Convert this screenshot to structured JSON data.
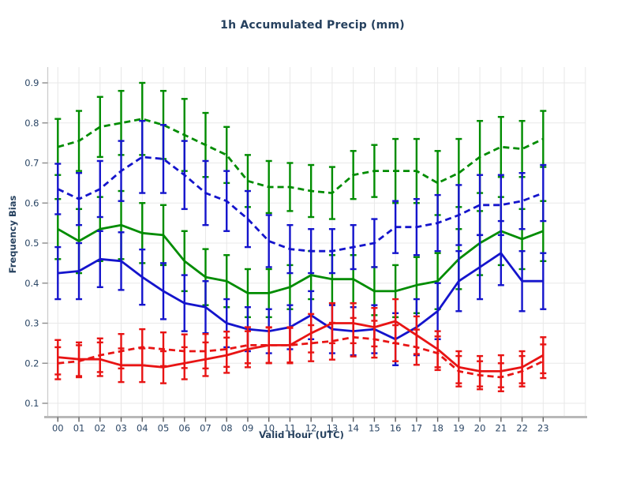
{
  "title": "1h Accumulated Precip (mm)",
  "axes": {
    "ylabel": "Frequency Bias",
    "xlabel": "Valid Hour (UTC)",
    "y_ticks": [
      0.1,
      0.2,
      0.3,
      0.4,
      0.5,
      0.6,
      0.7,
      0.8,
      0.9
    ],
    "x_tick_labels": [
      "00",
      "01",
      "02",
      "03",
      "04",
      "05",
      "06",
      "07",
      "08",
      "09",
      "10",
      "11",
      "12",
      "13",
      "14",
      "15",
      "16",
      "17",
      "18",
      "19",
      "20",
      "21",
      "22",
      "23"
    ]
  },
  "colors": {
    "green": "#008c00",
    "blue": "#1414cc",
    "red": "#e81414",
    "text_navy": "#2c4766",
    "grid": "#e8e8e8",
    "spine_left": "#cccccc",
    "spine_bottom": "#b8b8b8",
    "tick_y": "#8c8c8c",
    "tick_x": "#606060"
  },
  "chart_data": {
    "type": "line",
    "title": "1h Accumulated Precip (mm)",
    "xlabel": "Valid Hour (UTC)",
    "ylabel": "Frequency Bias",
    "x": [
      "00",
      "01",
      "02",
      "03",
      "04",
      "05",
      "06",
      "07",
      "08",
      "09",
      "10",
      "11",
      "12",
      "13",
      "14",
      "15",
      "16",
      "17",
      "18",
      "19",
      "20",
      "21",
      "22",
      "23"
    ],
    "ylim": [
      0.065,
      0.92
    ],
    "grid": true,
    "legend_position": "none",
    "error_bars": true,
    "series": [
      {
        "name": "green-dashed",
        "color": "#008c00",
        "style": "dashed",
        "values": [
          0.74,
          0.755,
          0.79,
          0.8,
          0.81,
          0.795,
          0.77,
          0.745,
          0.72,
          0.655,
          0.64,
          0.64,
          0.63,
          0.625,
          0.67,
          0.68,
          0.68,
          0.68,
          0.65,
          0.675,
          0.715,
          0.74,
          0.735,
          0.76
        ],
        "err": [
          0.07,
          0.075,
          0.075,
          0.08,
          0.09,
          0.085,
          0.09,
          0.08,
          0.07,
          0.065,
          0.065,
          0.06,
          0.065,
          0.065,
          0.06,
          0.065,
          0.08,
          0.08,
          0.08,
          0.085,
          0.09,
          0.075,
          0.07,
          0.07
        ]
      },
      {
        "name": "green-solid",
        "color": "#008c00",
        "style": "solid",
        "values": [
          0.535,
          0.505,
          0.535,
          0.545,
          0.525,
          0.52,
          0.455,
          0.415,
          0.405,
          0.375,
          0.375,
          0.39,
          0.42,
          0.41,
          0.41,
          0.38,
          0.38,
          0.395,
          0.405,
          0.46,
          0.5,
          0.53,
          0.51,
          0.53
        ],
        "err": [
          0.075,
          0.08,
          0.08,
          0.085,
          0.075,
          0.075,
          0.075,
          0.07,
          0.065,
          0.06,
          0.06,
          0.055,
          0.06,
          0.06,
          0.06,
          0.06,
          0.065,
          0.07,
          0.07,
          0.075,
          0.08,
          0.085,
          0.075,
          0.075
        ]
      },
      {
        "name": "blue-dashed",
        "color": "#1414cc",
        "style": "dashed",
        "values": [
          0.635,
          0.61,
          0.635,
          0.68,
          0.715,
          0.71,
          0.67,
          0.625,
          0.605,
          0.56,
          0.505,
          0.485,
          0.48,
          0.48,
          0.49,
          0.5,
          0.54,
          0.54,
          0.55,
          0.57,
          0.595,
          0.595,
          0.605,
          0.625
        ],
        "err": [
          0.063,
          0.065,
          0.07,
          0.075,
          0.09,
          0.085,
          0.085,
          0.08,
          0.075,
          0.07,
          0.065,
          0.06,
          0.055,
          0.055,
          0.055,
          0.06,
          0.065,
          0.07,
          0.07,
          0.075,
          0.075,
          0.075,
          0.07,
          0.07
        ]
      },
      {
        "name": "blue-solid",
        "color": "#1414cc",
        "style": "solid",
        "values": [
          0.425,
          0.43,
          0.46,
          0.455,
          0.415,
          0.38,
          0.35,
          0.34,
          0.3,
          0.285,
          0.28,
          0.29,
          0.32,
          0.285,
          0.28,
          0.285,
          0.26,
          0.29,
          0.33,
          0.405,
          0.44,
          0.475,
          0.405,
          0.405
        ],
        "err": [
          0.065,
          0.07,
          0.07,
          0.072,
          0.069,
          0.07,
          0.07,
          0.065,
          0.06,
          0.055,
          0.055,
          0.055,
          0.06,
          0.06,
          0.06,
          0.06,
          0.065,
          0.07,
          0.07,
          0.075,
          0.08,
          0.08,
          0.075,
          0.07
        ]
      },
      {
        "name": "red-dashed",
        "color": "#e81414",
        "style": "dashed",
        "values": [
          0.2,
          0.205,
          0.22,
          0.23,
          0.24,
          0.235,
          0.23,
          0.23,
          0.235,
          0.245,
          0.245,
          0.245,
          0.25,
          0.255,
          0.265,
          0.26,
          0.25,
          0.24,
          0.225,
          0.18,
          0.17,
          0.165,
          0.18,
          0.205
        ],
        "err": [
          0.04,
          0.04,
          0.042,
          0.043,
          0.045,
          0.042,
          0.042,
          0.043,
          0.044,
          0.045,
          0.044,
          0.043,
          0.045,
          0.046,
          0.048,
          0.046,
          0.045,
          0.044,
          0.042,
          0.038,
          0.035,
          0.035,
          0.038,
          0.042
        ]
      },
      {
        "name": "red-solid",
        "color": "#e81414",
        "style": "solid",
        "values": [
          0.215,
          0.21,
          0.21,
          0.195,
          0.195,
          0.19,
          0.2,
          0.21,
          0.22,
          0.235,
          0.245,
          0.245,
          0.275,
          0.3,
          0.3,
          0.29,
          0.305,
          0.27,
          0.235,
          0.19,
          0.18,
          0.18,
          0.19,
          0.22
        ],
        "err": [
          0.043,
          0.042,
          0.042,
          0.042,
          0.042,
          0.04,
          0.04,
          0.042,
          0.044,
          0.045,
          0.045,
          0.045,
          0.048,
          0.05,
          0.05,
          0.048,
          0.055,
          0.047,
          0.045,
          0.04,
          0.038,
          0.04,
          0.04,
          0.045
        ]
      }
    ]
  }
}
